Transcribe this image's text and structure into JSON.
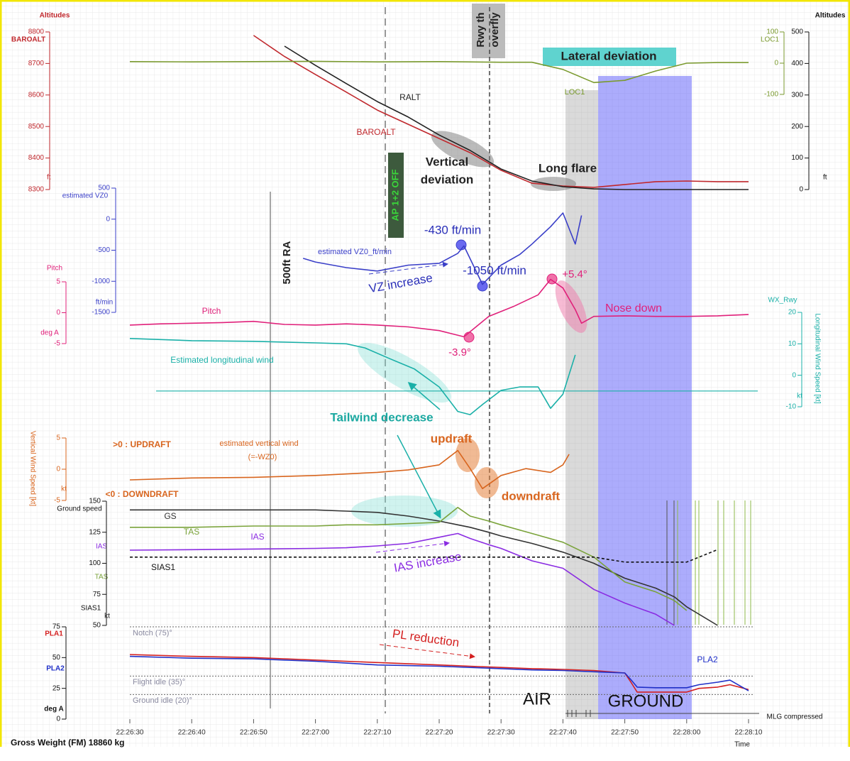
{
  "chart_data": [
    {
      "type": "line",
      "y_title": "Altitudes",
      "y_label": "BAROALT",
      "y_unit": "ft",
      "y2_title": "Altitudes",
      "y2_unit": "ft",
      "xlim": [
        "22:26:30",
        "22:28:10"
      ],
      "x": [
        "22:26:50",
        "22:26:55",
        "22:27:00",
        "22:27:05",
        "22:27:10",
        "22:27:15",
        "22:27:20",
        "22:27:25",
        "22:27:30",
        "22:27:35",
        "22:27:40",
        "22:27:45",
        "22:27:50",
        "22:27:55",
        "22:28:00",
        "22:28:05",
        "22:28:10"
      ],
      "ylim": [
        8300,
        8800
      ],
      "yticks": [
        8300,
        8400,
        8500,
        8600,
        8700,
        8800
      ],
      "y2lim": [
        0,
        500
      ],
      "y2ticks": [
        0,
        100,
        200,
        300,
        400,
        500
      ],
      "series": [
        {
          "name": "BAROALT",
          "color": "#c0282d",
          "values": [
            8789,
            8722,
            8665,
            8609,
            8552,
            8507,
            8462,
            8417,
            8361,
            8320,
            8311,
            8307,
            8316,
            8325,
            8327,
            8325,
            8325
          ]
        },
        {
          "name": "RALT",
          "color": "#222222",
          "axis": "y2",
          "values": [
            null,
            455,
            394,
            336,
            279,
            230,
            173,
            124,
            65,
            27,
            9,
            2,
            0,
            0,
            0,
            0,
            0
          ]
        }
      ]
    },
    {
      "type": "line",
      "xlim": [
        "22:26:30",
        "22:28:10"
      ],
      "x": [
        "22:26:30",
        "22:26:40",
        "22:26:50",
        "22:27:00",
        "22:27:10",
        "22:27:20",
        "22:27:30",
        "22:27:35",
        "22:27:40",
        "22:27:45",
        "22:27:50",
        "22:27:55",
        "22:28:00",
        "22:28:05",
        "22:28:10"
      ],
      "ylim": [
        -100,
        100
      ],
      "yticks": [
        -100,
        0,
        100
      ],
      "series": [
        {
          "name": "LOC1",
          "color": "#7a9a2e",
          "values": [
            5,
            4,
            5,
            6,
            4,
            5,
            3,
            3,
            -20,
            -62,
            -55,
            -25,
            0,
            2,
            2
          ]
        }
      ]
    },
    {
      "type": "line",
      "y_label": "estimated VZ0",
      "y_unit": "ft/min",
      "xlim": [
        "22:26:30",
        "22:28:10"
      ],
      "x": [
        "22:26:58",
        "22:27:00",
        "22:27:05",
        "22:27:10",
        "22:27:15",
        "22:27:20",
        "22:27:23",
        "22:27:24",
        "22:27:27",
        "22:27:30",
        "22:27:33",
        "22:27:35",
        "22:27:38",
        "22:27:40",
        "22:27:42",
        "22:27:43"
      ],
      "ylim": [
        -1500,
        500
      ],
      "yticks": [
        -1500,
        -1000,
        -500,
        0,
        500
      ],
      "series": [
        {
          "name": "estimated VZ0_ft/min",
          "color": "#3a3fc8",
          "values": [
            -630,
            -690,
            -780,
            -835,
            -740,
            -710,
            -550,
            -430,
            -1050,
            -740,
            -570,
            -400,
            -120,
            100,
            -400,
            60
          ]
        }
      ]
    },
    {
      "type": "line",
      "y_title": "Pitch",
      "y_unit": "deg A",
      "xlim": [
        "22:26:30",
        "22:28:10"
      ],
      "x": [
        "22:26:30",
        "22:26:35",
        "22:26:40",
        "22:26:45",
        "22:26:50",
        "22:26:55",
        "22:27:00",
        "22:27:05",
        "22:27:10",
        "22:27:15",
        "22:27:20",
        "22:27:24",
        "22:27:28",
        "22:27:32",
        "22:27:36",
        "22:27:38",
        "22:27:40",
        "22:27:42",
        "22:27:43",
        "22:27:45",
        "22:27:50",
        "22:27:55",
        "22:28:00",
        "22:28:05",
        "22:28:10"
      ],
      "ylim": [
        -5,
        5
      ],
      "yticks": [
        -5,
        0,
        5
      ],
      "series": [
        {
          "name": "Pitch",
          "color": "#e0207a",
          "values": [
            -2.0,
            -1.8,
            -1.7,
            -1.6,
            -1.4,
            -1.9,
            -2.0,
            -1.8,
            -2.0,
            -2.3,
            -2.9,
            -3.9,
            -0.6,
            1.0,
            2.9,
            5.4,
            4.0,
            0.5,
            -1.7,
            -0.6,
            -0.5,
            -0.6,
            -0.6,
            -0.5,
            -0.3
          ]
        }
      ]
    },
    {
      "type": "line",
      "y_title": "WX_Rwy",
      "y_label": "Longitudinal Wind Speed [kt]",
      "y_unit": "kt",
      "xlim": [
        "22:26:30",
        "22:28:10"
      ],
      "x": [
        "22:26:30",
        "22:26:40",
        "22:26:50",
        "22:27:00",
        "22:27:05",
        "22:27:08",
        "22:27:12",
        "22:27:16",
        "22:27:20",
        "22:27:23",
        "22:27:25",
        "22:27:27",
        "22:27:30",
        "22:27:33",
        "22:27:36",
        "22:27:38",
        "22:27:40",
        "22:27:42"
      ],
      "ylim": [
        -10,
        20
      ],
      "yticks": [
        -10,
        0,
        10,
        20
      ],
      "hline": -5,
      "series": [
        {
          "name": "Estimated longitudinal wind",
          "color": "#1ab0a8",
          "values": [
            11.7,
            11.0,
            10.8,
            10.3,
            10.0,
            8.7,
            5.3,
            2.0,
            -3.7,
            -11.5,
            -12.5,
            -9.3,
            -4.8,
            -3.7,
            -3.7,
            -10.5,
            -6.0,
            6.5
          ]
        }
      ]
    },
    {
      "type": "line",
      "y_label": "Vertical Wind Speed [kt]",
      "y_unit": "kt",
      "xlim": [
        "22:26:30",
        "22:28:10"
      ],
      "x": [
        "22:26:30",
        "22:26:40",
        "22:26:50",
        "22:27:00",
        "22:27:10",
        "22:27:15",
        "22:27:20",
        "22:27:23",
        "22:27:25",
        "22:27:27",
        "22:27:30",
        "22:27:34",
        "22:27:38",
        "22:27:40",
        "22:27:41"
      ],
      "ylim": [
        -5,
        5
      ],
      "yticks": [
        -5,
        0,
        5
      ],
      "series": [
        {
          "name": "estimated vertical wind",
          "color": "#d8651e",
          "values": [
            -1.7,
            -1.4,
            -1.3,
            -1.0,
            -0.5,
            -0.1,
            0.7,
            3.0,
            0.1,
            -3.1,
            -1.0,
            0.1,
            -0.5,
            0.7,
            2.4
          ]
        }
      ]
    },
    {
      "type": "line",
      "y_title": "Ground speed",
      "y_unit": "kt",
      "xlim": [
        "22:26:30",
        "22:28:10"
      ],
      "x": [
        "22:26:30",
        "22:26:40",
        "22:26:50",
        "22:27:00",
        "22:27:05",
        "22:27:10",
        "22:27:15",
        "22:27:20",
        "22:27:23",
        "22:27:25",
        "22:27:28",
        "22:27:30",
        "22:27:35",
        "22:27:40",
        "22:27:45",
        "22:27:50",
        "22:27:55",
        "22:27:58",
        "22:28:00",
        "22:28:05"
      ],
      "ylim": [
        50,
        150
      ],
      "yticks": [
        50,
        75,
        100,
        125,
        150
      ],
      "series": [
        {
          "name": "GS",
          "color": "#333333",
          "values": [
            143,
            143,
            143,
            143,
            142,
            141,
            138,
            134,
            131,
            129,
            125,
            122,
            116,
            109,
            100,
            88,
            80,
            73,
            65,
            50
          ]
        },
        {
          "name": "TAS",
          "color": "#7aa33a",
          "values": [
            129,
            129,
            130,
            130,
            131,
            131,
            132,
            133,
            145,
            138,
            134,
            131,
            124,
            117,
            105,
            85,
            77,
            70,
            62,
            null
          ]
        },
        {
          "name": "IAS",
          "color": "#8a2be2",
          "values": [
            110.6,
            111,
            111.5,
            112,
            112.5,
            114,
            116,
            121,
            124,
            120,
            115,
            112,
            102,
            96,
            79,
            68,
            59,
            50,
            null,
            null
          ]
        },
        {
          "name": "SIAS1",
          "color": "#111111",
          "line_style": "dashed",
          "values": [
            105,
            105,
            105,
            105,
            105,
            105,
            105,
            105,
            105,
            105,
            105,
            105,
            105,
            105,
            105,
            101,
            101,
            101,
            101,
            111
          ]
        }
      ]
    },
    {
      "type": "line",
      "y_unit": "deg A",
      "x_title": "Time",
      "note": "Gross Weight (FM) 18860 kg",
      "xlim": [
        "22:26:30",
        "22:28:10"
      ],
      "xticks": [
        "22:26:30",
        "22:26:40",
        "22:26:50",
        "22:27:00",
        "22:27:10",
        "22:27:20",
        "22:27:30",
        "22:27:40",
        "22:27:50",
        "22:28:00",
        "22:28:10"
      ],
      "x": [
        "22:26:30",
        "22:26:40",
        "22:26:50",
        "22:27:00",
        "22:27:10",
        "22:27:20",
        "22:27:25",
        "22:27:30",
        "22:27:35",
        "22:27:40",
        "22:27:45",
        "22:27:50",
        "22:27:51",
        "22:27:52",
        "22:27:55",
        "22:28:00",
        "22:28:02",
        "22:28:05",
        "22:28:07",
        "22:28:10"
      ],
      "ylim": [
        0,
        75
      ],
      "yticks": [
        0,
        25,
        50,
        75
      ],
      "ref_lines": [
        {
          "value": 75,
          "label": "Notch (75)°"
        },
        {
          "value": 35,
          "label": "Flight idle (35)°"
        },
        {
          "value": 20,
          "label": "Ground idle (20)°"
        }
      ],
      "series": [
        {
          "name": "PLA1",
          "color": "#d42020",
          "values": [
            52.5,
            51,
            50,
            48,
            46,
            44,
            43,
            42,
            41,
            40.4,
            39.5,
            37.5,
            30,
            22,
            22,
            22,
            25,
            26,
            28,
            24
          ]
        },
        {
          "name": "PLA2",
          "color": "#2030c8",
          "values": [
            51,
            49.5,
            49,
            47,
            44,
            43,
            42,
            41,
            40,
            39.5,
            38.5,
            37.5,
            32,
            26,
            25.5,
            25.5,
            28,
            30,
            31.7,
            23
          ]
        }
      ]
    }
  ],
  "annotations": [
    "500ft RA",
    "AP 1+2 OFF",
    "Rwy th",
    "overfly",
    "Lateral deviation",
    "Vertical",
    "deviation",
    "Long flare",
    "-430 ft/min",
    "-1050 ft/min",
    "VZ increase",
    "+5.4°",
    "Nose down",
    "-3.9°",
    "Tailwind decrease",
    "updraft",
    "downdraft",
    ">0 : UPDRAFT",
    "<0 : DOWNDRAFT",
    "(=-WZ0)",
    "IAS increase",
    "PL reduction",
    "AIR",
    "GROUND",
    "MLG compressed"
  ]
}
